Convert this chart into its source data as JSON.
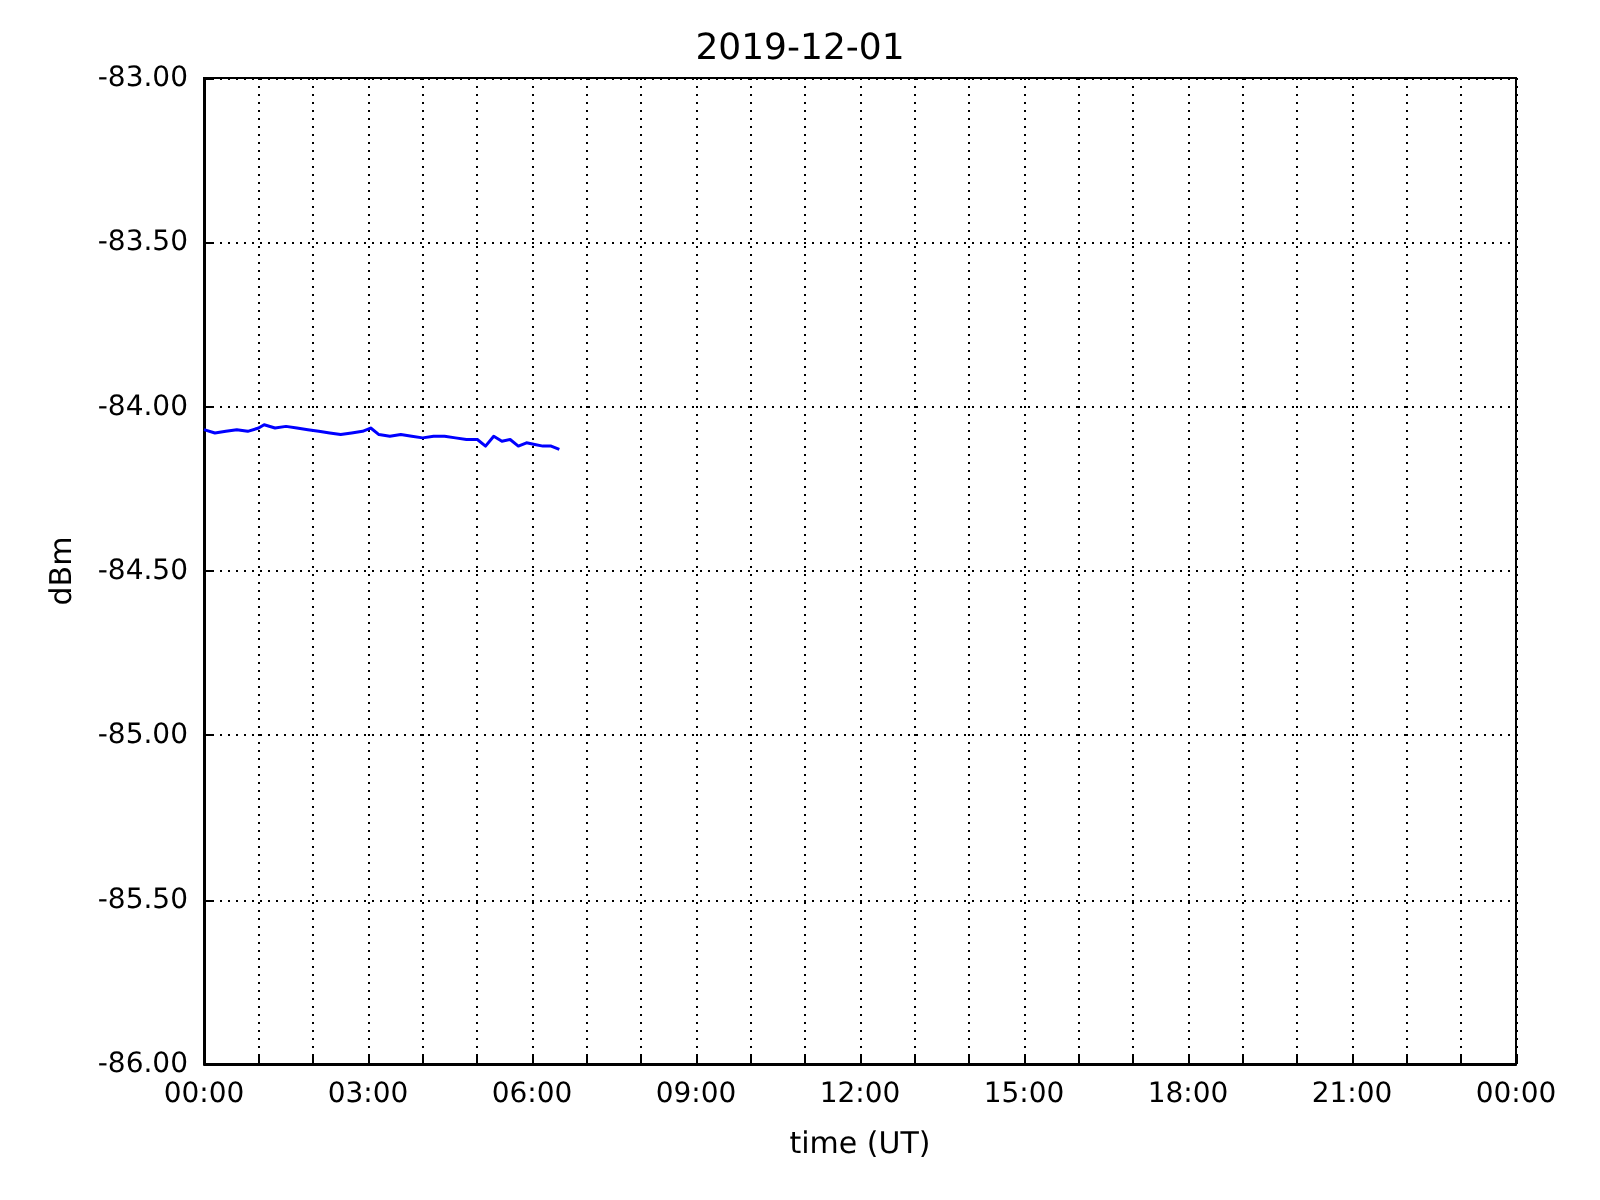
{
  "chart_data": {
    "type": "line",
    "title": "2019-12-01",
    "xlabel": "time (UT)",
    "ylabel": "dBm",
    "x": [
      0,
      0.2,
      0.4,
      0.6,
      0.8,
      1.0,
      1.1,
      1.3,
      1.5,
      1.7,
      1.9,
      2.1,
      2.3,
      2.5,
      2.7,
      2.9,
      3.05,
      3.2,
      3.4,
      3.6,
      3.8,
      4.0,
      4.2,
      4.4,
      4.6,
      4.8,
      5.0,
      5.15,
      5.3,
      5.45,
      5.6,
      5.75,
      5.9,
      6.05,
      6.2,
      6.35,
      6.5
    ],
    "series": [
      {
        "color": "#0000ff",
        "values": [
          -84.07,
          -84.08,
          -84.075,
          -84.07,
          -84.075,
          -84.065,
          -84.055,
          -84.065,
          -84.06,
          -84.065,
          -84.07,
          -84.075,
          -84.08,
          -84.085,
          -84.08,
          -84.075,
          -84.065,
          -84.085,
          -84.09,
          -84.085,
          -84.09,
          -84.095,
          -84.09,
          -84.09,
          -84.095,
          -84.1,
          -84.1,
          -84.12,
          -84.09,
          -84.105,
          -84.1,
          -84.12,
          -84.11,
          -84.115,
          -84.12,
          -84.12,
          -84.13
        ]
      }
    ],
    "xlim": [
      0,
      24
    ],
    "xticks": [
      {
        "value": 0,
        "label": "00:00"
      },
      {
        "value": 1,
        "label": null
      },
      {
        "value": 2,
        "label": null
      },
      {
        "value": 3,
        "label": "03:00"
      },
      {
        "value": 4,
        "label": null
      },
      {
        "value": 5,
        "label": null
      },
      {
        "value": 6,
        "label": "06:00"
      },
      {
        "value": 7,
        "label": null
      },
      {
        "value": 8,
        "label": null
      },
      {
        "value": 9,
        "label": "09:00"
      },
      {
        "value": 10,
        "label": null
      },
      {
        "value": 11,
        "label": null
      },
      {
        "value": 12,
        "label": "12:00"
      },
      {
        "value": 13,
        "label": null
      },
      {
        "value": 14,
        "label": null
      },
      {
        "value": 15,
        "label": "15:00"
      },
      {
        "value": 16,
        "label": null
      },
      {
        "value": 17,
        "label": null
      },
      {
        "value": 18,
        "label": "18:00"
      },
      {
        "value": 19,
        "label": null
      },
      {
        "value": 20,
        "label": null
      },
      {
        "value": 21,
        "label": "21:00"
      },
      {
        "value": 22,
        "label": null
      },
      {
        "value": 23,
        "label": null
      },
      {
        "value": 24,
        "label": "00:00"
      }
    ],
    "ylim": [
      -86,
      -83
    ],
    "yticks": [
      {
        "value": -86,
        "label": "-86.00"
      },
      {
        "value": -85.5,
        "label": "-85.50"
      },
      {
        "value": -85,
        "label": "-85.00"
      },
      {
        "value": -84.5,
        "label": "-84.50"
      },
      {
        "value": -84,
        "label": "-84.00"
      },
      {
        "value": -83.5,
        "label": "-83.50"
      },
      {
        "value": -83,
        "label": "-83.00"
      }
    ],
    "grid": true,
    "marker": "none",
    "line_style": "solid"
  }
}
